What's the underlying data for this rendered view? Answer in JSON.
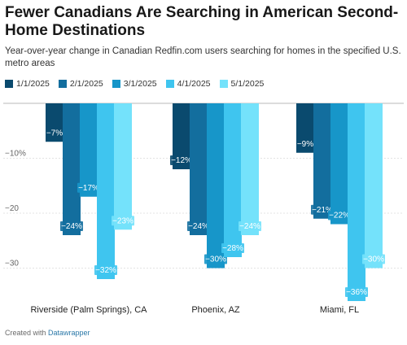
{
  "header": {
    "title": "Fewer Canadians Are Searching in American Second-Home Destinations",
    "subtitle": "Year-over-year change in Canadian Redfin.com users searching for homes in the specified U.S. metro areas"
  },
  "legend": [
    {
      "label": "1/1/2025",
      "color": "#0a4a6e"
    },
    {
      "label": "2/1/2025",
      "color": "#136e9e"
    },
    {
      "label": "3/1/2025",
      "color": "#1796c9"
    },
    {
      "label": "4/1/2025",
      "color": "#3fc5ef"
    },
    {
      "label": "5/1/2025",
      "color": "#74e2fb"
    }
  ],
  "footer": {
    "prefix": "Created with ",
    "link": "Datawrapper"
  },
  "chart_data": {
    "type": "bar",
    "categories": [
      "Riverside (Palm Springs), CA",
      "Phoenix, AZ",
      "Miami, FL"
    ],
    "series": [
      {
        "name": "1/1/2025",
        "values": [
          -7,
          -12,
          -9
        ],
        "labels": [
          "−7%",
          "−12%",
          "−9%"
        ]
      },
      {
        "name": "2/1/2025",
        "values": [
          -24,
          -24,
          -21
        ],
        "labels": [
          "−24%",
          "−24%",
          "−21%"
        ]
      },
      {
        "name": "3/1/2025",
        "values": [
          -17,
          -30,
          -22
        ],
        "labels": [
          "−17%",
          "−30%",
          "−22%"
        ]
      },
      {
        "name": "4/1/2025",
        "values": [
          -32,
          -28,
          -36
        ],
        "labels": [
          "−32%",
          "−28%",
          "−36%"
        ]
      },
      {
        "name": "5/1/2025",
        "values": [
          -23,
          -24,
          -30
        ],
        "labels": [
          "−23%",
          "−24%",
          "−30%"
        ]
      }
    ],
    "colors": [
      "#0a4a6e",
      "#136e9e",
      "#1796c9",
      "#3fc5ef",
      "#74e2fb"
    ],
    "yticks": [
      0,
      -10,
      -20,
      -30
    ],
    "ytick_labels": [
      "",
      "−10%",
      "−20",
      "−30"
    ],
    "ylim": [
      -38,
      0
    ],
    "grid": true,
    "legend_position": "top-left"
  }
}
